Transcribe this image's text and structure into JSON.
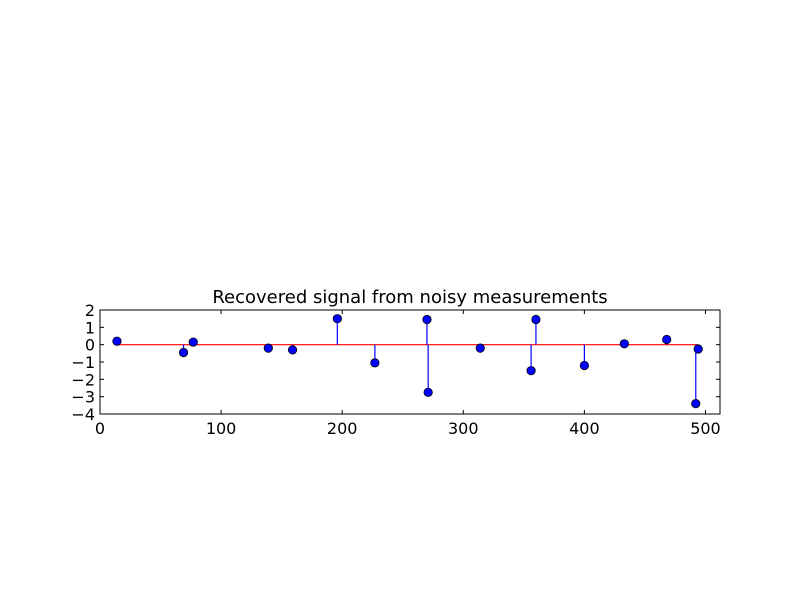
{
  "chart_data": {
    "type": "stem",
    "title": "Recovered signal from noisy measurements",
    "xlabel": "",
    "ylabel": "",
    "xlim": [
      0,
      512
    ],
    "ylim": [
      -4,
      2
    ],
    "xticks": [
      0,
      100,
      200,
      300,
      400,
      500
    ],
    "yticks": [
      2,
      1,
      0,
      -1,
      -2,
      -3,
      -4
    ],
    "baseline": {
      "value": 0,
      "color": "#ff0000"
    },
    "stem_color": "#0000ff",
    "marker_color": "#0000ff",
    "grid": false,
    "points": [
      {
        "x": 14,
        "y": 0.2
      },
      {
        "x": 69,
        "y": -0.45
      },
      {
        "x": 77,
        "y": 0.15
      },
      {
        "x": 139,
        "y": -0.2
      },
      {
        "x": 159,
        "y": -0.3
      },
      {
        "x": 196,
        "y": 1.5
      },
      {
        "x": 227,
        "y": -1.05
      },
      {
        "x": 270,
        "y": 1.45
      },
      {
        "x": 271,
        "y": -2.75
      },
      {
        "x": 314,
        "y": -0.2
      },
      {
        "x": 356,
        "y": -1.5
      },
      {
        "x": 360,
        "y": 1.45
      },
      {
        "x": 400,
        "y": -1.2
      },
      {
        "x": 433,
        "y": 0.05
      },
      {
        "x": 468,
        "y": 0.3
      },
      {
        "x": 492,
        "y": -3.4
      },
      {
        "x": 494,
        "y": -0.25
      }
    ]
  }
}
